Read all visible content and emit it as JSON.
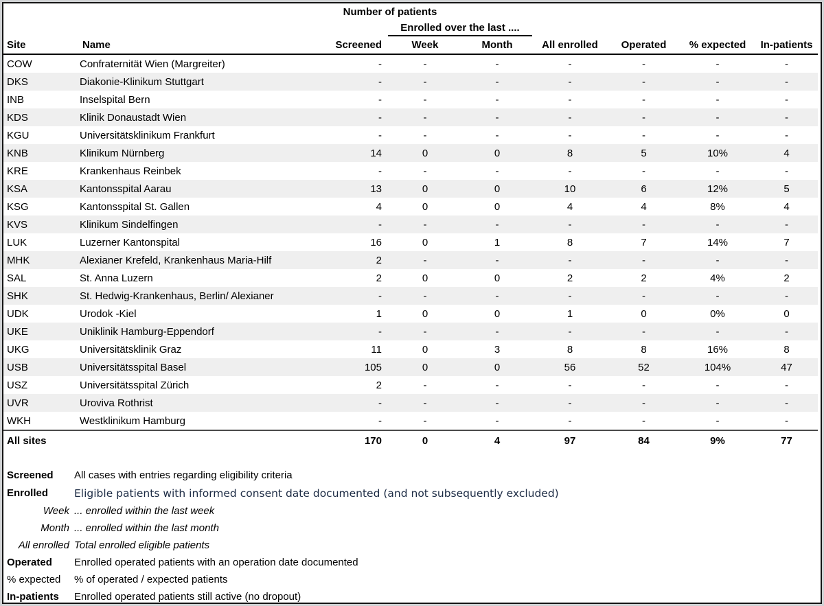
{
  "header": {
    "title": "Number of patients",
    "subtitle": "Enrolled over the last ....",
    "columns": [
      "Site",
      "Name",
      "Screened",
      "Week",
      "Month",
      "All enrolled",
      "Operated",
      "% expected",
      "In-patients"
    ]
  },
  "table": {
    "rows": [
      {
        "site": "COW",
        "name": "Confraternität Wien (Margreiter)",
        "values": [
          "-",
          "-",
          "-",
          "-",
          "-",
          "-",
          "-"
        ]
      },
      {
        "site": "DKS",
        "name": "Diakonie-Klinikum Stuttgart",
        "values": [
          "-",
          "-",
          "-",
          "-",
          "-",
          "-",
          "-"
        ]
      },
      {
        "site": "INB",
        "name": "Inselspital Bern",
        "values": [
          "-",
          "-",
          "-",
          "-",
          "-",
          "-",
          "-"
        ]
      },
      {
        "site": "KDS",
        "name": "Klinik Donaustadt Wien",
        "values": [
          "-",
          "-",
          "-",
          "-",
          "-",
          "-",
          "-"
        ]
      },
      {
        "site": "KGU",
        "name": "Universitätsklinikum Frankfurt",
        "values": [
          "-",
          "-",
          "-",
          "-",
          "-",
          "-",
          "-"
        ]
      },
      {
        "site": "KNB",
        "name": "Klinikum Nürnberg",
        "values": [
          "14",
          "0",
          "0",
          "8",
          "5",
          "10%",
          "4"
        ]
      },
      {
        "site": "KRE",
        "name": "Krankenhaus Reinbek",
        "values": [
          "-",
          "-",
          "-",
          "-",
          "-",
          "-",
          "-"
        ]
      },
      {
        "site": "KSA",
        "name": "Kantonsspital Aarau",
        "values": [
          "13",
          "0",
          "0",
          "10",
          "6",
          "12%",
          "5"
        ]
      },
      {
        "site": "KSG",
        "name": "Kantonsspital St. Gallen",
        "values": [
          "4",
          "0",
          "0",
          "4",
          "4",
          "8%",
          "4"
        ]
      },
      {
        "site": "KVS",
        "name": "Klinikum Sindelfingen",
        "values": [
          "-",
          "-",
          "-",
          "-",
          "-",
          "-",
          "-"
        ]
      },
      {
        "site": "LUK",
        "name": "Luzerner Kantonspital",
        "values": [
          "16",
          "0",
          "1",
          "8",
          "7",
          "14%",
          "7"
        ]
      },
      {
        "site": "MHK",
        "name": "Alexianer Krefeld, Krankenhaus Maria-Hilf",
        "values": [
          "2",
          "-",
          "-",
          "-",
          "-",
          "-",
          "-"
        ]
      },
      {
        "site": "SAL",
        "name": "St. Anna Luzern",
        "values": [
          "2",
          "0",
          "0",
          "2",
          "2",
          "4%",
          "2"
        ]
      },
      {
        "site": "SHK",
        "name": "St. Hedwig-Krankenhaus, Berlin/ Alexianer",
        "values": [
          "-",
          "-",
          "-",
          "-",
          "-",
          "-",
          "-"
        ]
      },
      {
        "site": "UDK",
        "name": "Urodok -Kiel",
        "values": [
          "1",
          "0",
          "0",
          "1",
          "0",
          "0%",
          "0"
        ]
      },
      {
        "site": "UKE",
        "name": "Uniklinik Hamburg-Eppendorf",
        "values": [
          "-",
          "-",
          "-",
          "-",
          "-",
          "-",
          "-"
        ]
      },
      {
        "site": "UKG",
        "name": "Universitätsklinik Graz",
        "values": [
          "11",
          "0",
          "3",
          "8",
          "8",
          "16%",
          "8"
        ]
      },
      {
        "site": "USB",
        "name": "Universitätsspital Basel",
        "values": [
          "105",
          "0",
          "0",
          "56",
          "52",
          "104%",
          "47"
        ]
      },
      {
        "site": "USZ",
        "name": "Universitätsspital Zürich",
        "values": [
          "2",
          "-",
          "-",
          "-",
          "-",
          "-",
          "-"
        ]
      },
      {
        "site": "UVR",
        "name": "Uroviva Rothrist",
        "values": [
          "-",
          "-",
          "-",
          "-",
          "-",
          "-",
          "-"
        ]
      },
      {
        "site": "WKH",
        "name": "Westklinikum Hamburg",
        "values": [
          "-",
          "-",
          "-",
          "-",
          "-",
          "-",
          "-"
        ]
      }
    ],
    "total": {
      "label": "All sites",
      "values": [
        "170",
        "0",
        "4",
        "97",
        "84",
        "9%",
        "77"
      ]
    }
  },
  "legend": {
    "items": [
      {
        "label": "Screened",
        "description": "All cases with entries regarding eligibility criteria",
        "label_style": "bold",
        "desc_style": "normal"
      },
      {
        "label": "Enrolled",
        "description": "Eligible patients with informed consent date documented (and not subsequently excluded)",
        "label_style": "bold",
        "desc_style": "highlight"
      },
      {
        "label": "Week",
        "description": "... enrolled within the last week",
        "label_style": "italic",
        "desc_style": "italic"
      },
      {
        "label": "Month",
        "description": "... enrolled within the last month",
        "label_style": "italic",
        "desc_style": "italic"
      },
      {
        "label": "All enrolled",
        "description": "Total enrolled eligible patients",
        "label_style": "italic",
        "desc_style": "italic"
      },
      {
        "label": "Operated",
        "description": "Enrolled operated patients with an operation date documented",
        "label_style": "bold",
        "desc_style": "normal"
      },
      {
        "label": "% expected",
        "description": "% of operated / expected patients",
        "label_style": "normal",
        "desc_style": "normal"
      },
      {
        "label": "In-patients",
        "description": "Enrolled operated patients still active (no dropout)",
        "label_style": "bold",
        "desc_style": "normal"
      }
    ]
  },
  "colors": {
    "stripe": "#efefef",
    "header_rule": "#000000",
    "total_rule": "#4a4a4a",
    "sheet_border": "#151515",
    "page_background": "#d0d2d4",
    "highlight_text": "#1c2b44"
  }
}
